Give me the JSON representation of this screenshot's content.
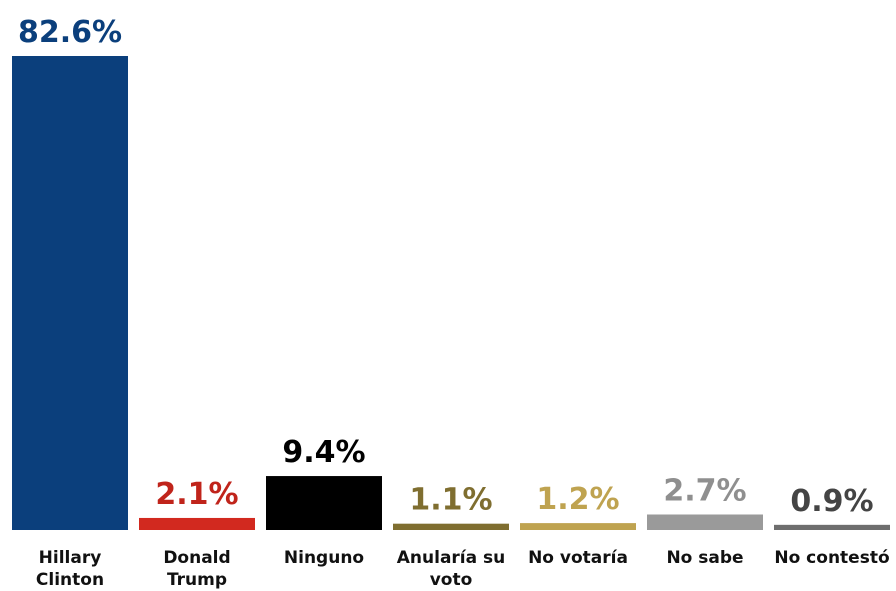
{
  "chart_data": {
    "type": "bar",
    "title": "",
    "xlabel": "",
    "ylabel": "",
    "ylim": [
      0,
      100
    ],
    "grid": false,
    "categories": [
      "Hillary Clinton",
      "Donald Trump",
      "Ninguno",
      "Anularía su voto",
      "No votaría",
      "No sabe",
      "No contestó"
    ],
    "values": [
      82.6,
      2.1,
      9.4,
      1.1,
      1.2,
      2.7,
      0.9
    ],
    "value_labels": [
      "82.6%",
      "2.1%",
      "9.4%",
      "1.1%",
      "1.2%",
      "2.7%",
      "0.9%"
    ],
    "bar_colors": [
      "#0b3f7c",
      "#d2291f",
      "#000000",
      "#7f6e30",
      "#bfa350",
      "#9a9a9a",
      "#6e6e6e"
    ],
    "label_colors": [
      "#0b3f7c",
      "#c0241b",
      "#000000",
      "#7f6e30",
      "#bfa350",
      "#8f8f8f",
      "#444444"
    ]
  }
}
